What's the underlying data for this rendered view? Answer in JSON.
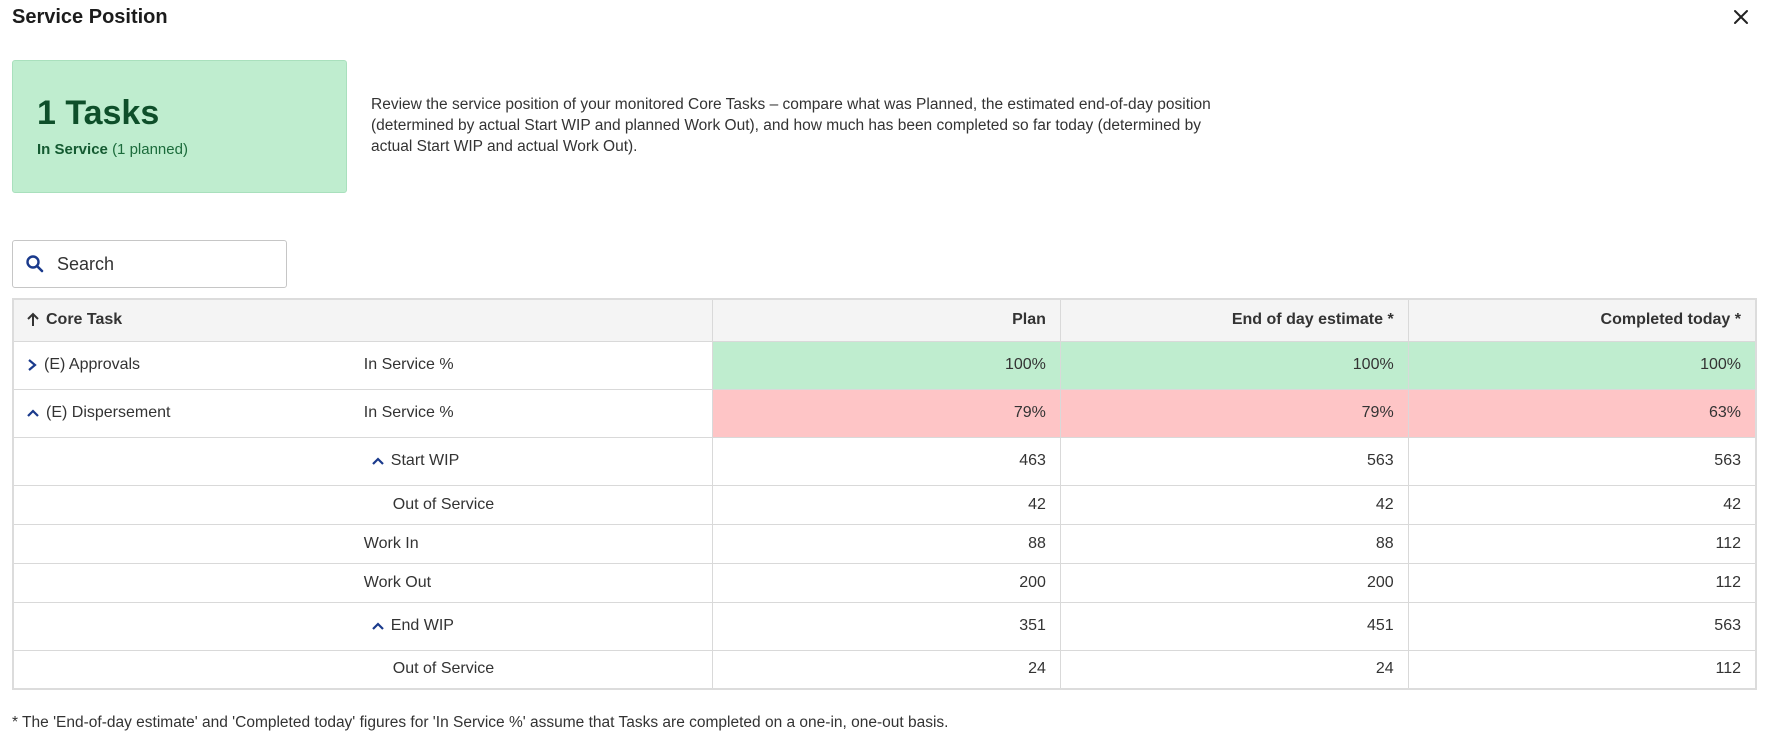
{
  "dialog": {
    "title": "Service Position"
  },
  "summary": {
    "count": "1 Tasks",
    "status_bold": "In Service",
    "status_rest": "(1 planned)"
  },
  "description": "Review the service position of your monitored Core Tasks – compare what was Planned, the estimated end-of-day position (determined by actual Start WIP and planned Work Out), and how much has been completed so far today (determined by actual Start WIP and actual Work Out).",
  "search": {
    "placeholder": "Search"
  },
  "table": {
    "headers": {
      "task": "Core Task",
      "plan": "Plan",
      "eod": "End of day estimate *",
      "completed": "Completed today *"
    },
    "rows": [
      {
        "task": "(E) Approvals",
        "metric": "In Service %",
        "plan": "100%",
        "eod": "100%",
        "completed": "100%"
      },
      {
        "task": "(E) Dispersement",
        "metric": "In Service %",
        "plan": "79%",
        "eod": "79%",
        "completed": "63%"
      },
      {
        "task": "",
        "metric": "Start WIP",
        "plan": "463",
        "eod": "563",
        "completed": "563"
      },
      {
        "task": "",
        "metric": "Out of Service",
        "plan": "42",
        "eod": "42",
        "completed": "42"
      },
      {
        "task": "",
        "metric": "Work In",
        "plan": "88",
        "eod": "88",
        "completed": "112"
      },
      {
        "task": "",
        "metric": "Work Out",
        "plan": "200",
        "eod": "200",
        "completed": "112"
      },
      {
        "task": "",
        "metric": "End WIP",
        "plan": "351",
        "eod": "451",
        "completed": "563"
      },
      {
        "task": "",
        "metric": "Out of Service",
        "plan": "24",
        "eod": "24",
        "completed": "112"
      }
    ]
  },
  "footnote": "* The 'End-of-day estimate' and 'Completed today' figures for 'In Service %' assume that Tasks are completed on a one-in, one-out basis.",
  "colors": {
    "ok": "#bfedcf",
    "bad": "#fec5c6",
    "accent": "#1a3a8c",
    "summary_text": "#0e4f2a"
  }
}
